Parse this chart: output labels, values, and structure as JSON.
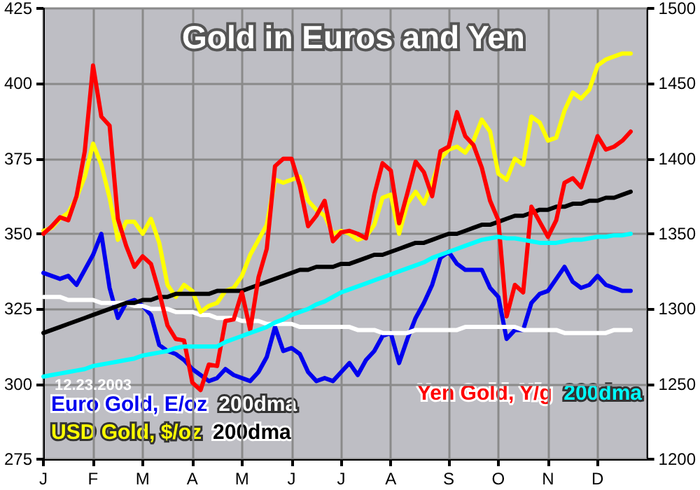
{
  "chart_data": {
    "type": "line",
    "title": "Gold in Euros and Yen",
    "annotations": [
      "12.23.2003"
    ],
    "categories": [
      "J",
      null,
      null,
      null,
      null,
      null,
      "F",
      null,
      null,
      null,
      null,
      null,
      "M",
      null,
      null,
      null,
      null,
      null,
      "A",
      null,
      null,
      null,
      null,
      null,
      "M",
      null,
      null,
      null,
      null,
      null,
      "J",
      null,
      null,
      null,
      null,
      null,
      "J",
      null,
      null,
      null,
      null,
      null,
      "A",
      null,
      null,
      null,
      null,
      null,
      null,
      "S",
      null,
      null,
      null,
      null,
      null,
      "O",
      null,
      null,
      null,
      null,
      null,
      "N",
      null,
      null,
      null,
      null,
      null,
      "D",
      null,
      null,
      null,
      null,
      null,
      null
    ],
    "ylim": [
      275,
      425
    ],
    "yticks": [
      275,
      300,
      325,
      350,
      375,
      400,
      425
    ],
    "y2lim": [
      1200,
      1500
    ],
    "y2ticks": [
      1200,
      1250,
      1300,
      1350,
      1400,
      1450,
      1500
    ],
    "grid": true,
    "legend": "bottom",
    "series": [
      {
        "name": "Euro Gold, E/oz",
        "color": "#0000ee",
        "values": [
          337,
          336,
          335,
          336,
          333,
          338,
          343,
          350,
          332,
          322,
          327,
          328,
          326,
          323,
          313,
          311,
          310,
          308,
          305,
          303,
          301,
          302,
          305,
          303,
          302,
          301,
          304,
          309,
          319,
          311,
          312,
          310,
          304,
          301,
          302,
          301,
          304,
          307,
          303,
          308,
          311,
          316,
          317,
          307,
          315,
          322,
          327,
          333,
          342,
          344,
          340,
          338,
          338,
          338,
          332,
          329,
          315,
          318,
          318,
          327,
          330,
          331,
          335,
          339,
          334,
          332,
          333,
          336,
          333,
          332,
          331,
          331,
          null,
          null
        ]
      },
      {
        "name": "200dma",
        "color": "#ffffff",
        "values": [
          329,
          329,
          329,
          328,
          328,
          328,
          328,
          327,
          327,
          327,
          327,
          326,
          326,
          325,
          325,
          325,
          324,
          324,
          324,
          323,
          323,
          322,
          322,
          322,
          321,
          321,
          321,
          320,
          320,
          320,
          320,
          319,
          319,
          319,
          319,
          319,
          319,
          319,
          318,
          318,
          318,
          317,
          317,
          317,
          317,
          318,
          318,
          318,
          318,
          318,
          318,
          319,
          319,
          319,
          319,
          319,
          319,
          319,
          318,
          318,
          318,
          318,
          318,
          317,
          317,
          317,
          317,
          317,
          317,
          318,
          318,
          318,
          null,
          null
        ]
      },
      {
        "name": "USD Gold, $/oz",
        "color": "#ffff00",
        "values": [
          351,
          352,
          355,
          357,
          362,
          369,
          380,
          373,
          362,
          348,
          354,
          354,
          350,
          355,
          347,
          333,
          329,
          333,
          331,
          324,
          326,
          327,
          331,
          332,
          336,
          343,
          348,
          353,
          368,
          367,
          368,
          369,
          361,
          358,
          356,
          350,
          351,
          350,
          348,
          349,
          353,
          362,
          363,
          350,
          360,
          364,
          360,
          367,
          375,
          378,
          379,
          377,
          381,
          388,
          384,
          370,
          368,
          375,
          373,
          389,
          387,
          381,
          382,
          391,
          397,
          395,
          398,
          406,
          408,
          409,
          410,
          410,
          null,
          null
        ]
      },
      {
        "name": "200dma",
        "color": "#000000",
        "values": [
          317,
          318,
          319,
          320,
          321,
          322,
          323,
          324,
          325,
          326,
          327,
          327,
          328,
          328,
          329,
          329,
          330,
          330,
          330,
          330,
          330,
          331,
          331,
          331,
          331,
          332,
          333,
          334,
          335,
          336,
          337,
          338,
          338,
          339,
          339,
          339,
          340,
          340,
          341,
          342,
          343,
          343,
          344,
          345,
          346,
          347,
          347,
          348,
          349,
          350,
          350,
          351,
          352,
          353,
          353,
          354,
          355,
          356,
          356,
          357,
          358,
          358,
          359,
          359,
          360,
          360,
          361,
          361,
          362,
          362,
          363,
          364,
          null,
          null
        ]
      },
      {
        "name": "Yen Gold, Y/g",
        "color": "#ff0000",
        "axis": "y2",
        "values": [
          1350,
          1355,
          1361,
          1359,
          1375,
          1405,
          1462,
          1428,
          1422,
          1360,
          1342,
          1328,
          1335,
          1330,
          1311,
          1289,
          1280,
          1279,
          1251,
          1246,
          1263,
          1262,
          1292,
          1293,
          1311,
          1286,
          1321,
          1340,
          1395,
          1400,
          1400,
          1382,
          1355,
          1362,
          1372,
          1345,
          1351,
          1352,
          1350,
          1347,
          1376,
          1397,
          1392,
          1357,
          1377,
          1398,
          1391,
          1375,
          1405,
          1408,
          1431,
          1415,
          1409,
          1394,
          1372,
          1359,
          1295,
          1316,
          1311,
          1368,
          1358,
          1348,
          1359,
          1384,
          1387,
          1381,
          1398,
          1415,
          1406,
          1408,
          1412,
          1418,
          null,
          null
        ]
      },
      {
        "name": "200dma",
        "color": "#00ffff",
        "axis": "y2",
        "values": [
          1255,
          1256,
          1257,
          1258,
          1259,
          1260,
          1262,
          1263,
          1264,
          1265,
          1266,
          1267,
          1269,
          1270,
          1271,
          1272,
          1274,
          1275,
          1275,
          1275,
          1275,
          1275,
          1278,
          1280,
          1282,
          1284,
          1286,
          1288,
          1291,
          1293,
          1296,
          1298,
          1300,
          1303,
          1305,
          1308,
          1311,
          1313,
          1315,
          1317,
          1319,
          1321,
          1323,
          1325,
          1327,
          1329,
          1331,
          1334,
          1336,
          1338,
          1340,
          1342,
          1344,
          1346,
          1347,
          1348,
          1347,
          1347,
          1346,
          1345,
          1344,
          1344,
          1344,
          1345,
          1346,
          1346,
          1347,
          1348,
          1348,
          1349,
          1349,
          1350,
          null,
          null
        ]
      }
    ]
  }
}
